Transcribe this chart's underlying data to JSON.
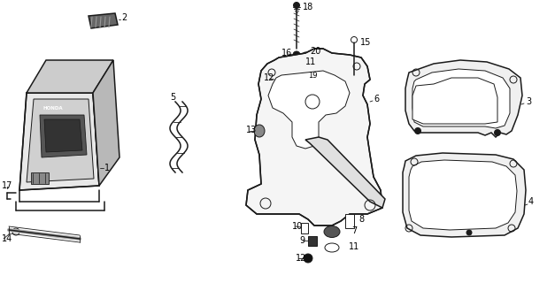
{
  "background_color": "#ffffff",
  "line_color": "#1a1a1a",
  "label_color": "#000000",
  "fig_width": 6.27,
  "fig_height": 3.2,
  "dpi": 100
}
